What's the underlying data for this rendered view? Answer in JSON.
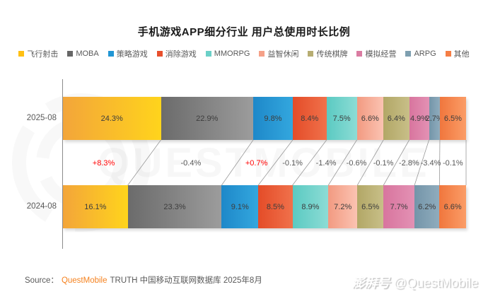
{
  "title": "手机游戏APP细分行业 用户总使用时长比例",
  "chart_data": {
    "type": "bar",
    "variant": "horizontal-stacked-percent",
    "categories": [
      "2025-08",
      "2024-08"
    ],
    "segments": [
      {
        "label": "飞行射击",
        "legend_color": "#FFC013",
        "gradient": [
          "#F3A53A",
          "#FFD41C"
        ]
      },
      {
        "label": "MOBA",
        "legend_color": "#666666",
        "gradient": [
          "#6B6B6B",
          "#9C9C9C"
        ]
      },
      {
        "label": "策略游戏",
        "legend_color": "#2196D4",
        "gradient": [
          "#1E88C9",
          "#33A7DE"
        ]
      },
      {
        "label": "消除游戏",
        "legend_color": "#E8502D",
        "gradient": [
          "#E44C28",
          "#F0714B"
        ]
      },
      {
        "label": "MMORPG",
        "legend_color": "#6BD0C8",
        "gradient": [
          "#5BCAC2",
          "#8CDCD5"
        ]
      },
      {
        "label": "益智休闲",
        "legend_color": "#F5A188",
        "gradient": [
          "#F29A81",
          "#FBC3B2"
        ]
      },
      {
        "label": "传统棋牌",
        "legend_color": "#B7AD72",
        "gradient": [
          "#B2A766",
          "#C8BF88"
        ]
      },
      {
        "label": "模拟经营",
        "legend_color": "#DA7CA2",
        "gradient": [
          "#D8759E",
          "#E391B4"
        ]
      },
      {
        "label": "ARPG",
        "legend_color": "#7E9FB0",
        "gradient": [
          "#7495A9",
          "#8FACBD"
        ]
      },
      {
        "label": "其他",
        "legend_color": "#F57E45",
        "gradient": [
          "#F0763D",
          "#FB9D67"
        ]
      }
    ],
    "series": [
      {
        "name": "2025-08",
        "values": [
          24.3,
          22.9,
          9.8,
          8.4,
          7.5,
          6.6,
          6.4,
          4.9,
          2.7,
          6.5
        ]
      },
      {
        "name": "2024-08",
        "values": [
          16.1,
          23.3,
          9.1,
          8.5,
          8.9,
          7.2,
          6.5,
          7.7,
          6.2,
          6.6
        ]
      }
    ],
    "changes": [
      {
        "text": "+8.3%",
        "positive": true
      },
      {
        "text": "-0.4%",
        "positive": false
      },
      {
        "text": "+0.7%",
        "positive": true
      },
      {
        "text": "-0.1%",
        "positive": false
      },
      {
        "text": "-1.4%",
        "positive": false
      },
      {
        "text": "-0.6%",
        "positive": false
      },
      {
        "text": "-0.1%",
        "positive": false
      },
      {
        "text": "-2.8%",
        "positive": false
      },
      {
        "text": "-3.4%",
        "positive": false
      },
      {
        "text": "-0.1%",
        "positive": false
      }
    ],
    "value_suffix": "%",
    "positive_color": "#FF0000",
    "negative_color": "#595959",
    "legend_position": "top",
    "grid": false
  },
  "source": {
    "prefix": "Source：",
    "brand": "QuestMobile",
    "rest": "TRUTH 中国移动互联网数据库 2025年8月"
  },
  "watermark": {
    "badge": "澎湃号",
    "handle": "@QuestMobile",
    "ghost": "QUESTMOBILE"
  }
}
